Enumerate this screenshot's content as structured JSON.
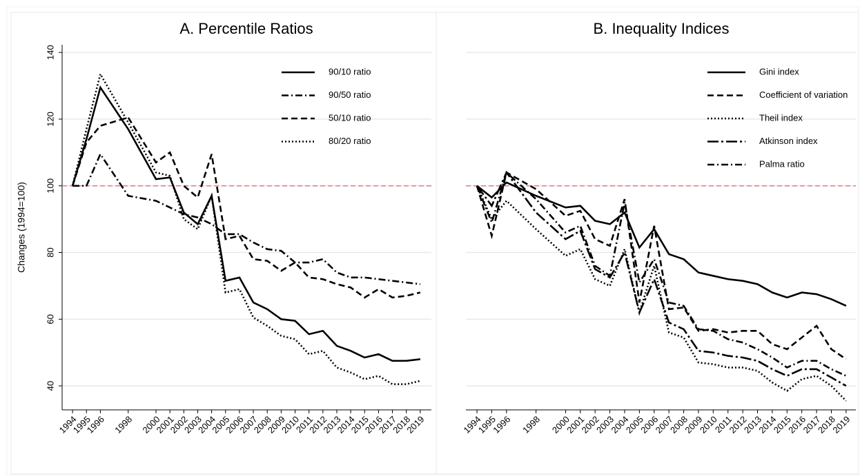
{
  "chart_data": [
    {
      "type": "line",
      "title": "A. Percentile Ratios",
      "y_label": "Changes (1994=100)",
      "x": [
        1994,
        1995,
        1996,
        1998,
        2000,
        2001,
        2002,
        2003,
        2004,
        2005,
        2006,
        2007,
        2008,
        2009,
        2010,
        2011,
        2012,
        2013,
        2014,
        2015,
        2016,
        2017,
        2018,
        2019
      ],
      "xlim": [
        1993.25,
        2019.8
      ],
      "xticks": [
        1994,
        1995,
        1996,
        1998,
        2000,
        2001,
        2002,
        2003,
        2004,
        2005,
        2006,
        2007,
        2008,
        2009,
        2010,
        2011,
        2012,
        2013,
        2014,
        2015,
        2016,
        2017,
        2018,
        2019
      ],
      "ylim": [
        32.8,
        142.3
      ],
      "yticks": [
        40,
        60,
        80,
        100,
        120,
        140
      ],
      "ytick_labels": true,
      "grid": true,
      "reference_line": 100,
      "reference_color": "#e07a7a",
      "legend": "top-right",
      "series": [
        {
          "name": "90/10 ratio",
          "color": "#000000",
          "dash": "solid",
          "values": [
            100,
            114,
            129.5,
            117,
            102,
            102.5,
            92,
            88.5,
            97,
            71.5,
            72.5,
            65,
            63,
            60,
            59.5,
            55.5,
            56.5,
            52,
            50.5,
            48.5,
            49.5,
            47.5,
            47.5,
            48
          ]
        },
        {
          "name": "90/50 ratio",
          "color": "#000000",
          "dash": "dash-dot",
          "values": [
            100,
            100,
            109.5,
            97,
            95.5,
            93.5,
            91.5,
            90.5,
            88.5,
            85.5,
            85.5,
            83,
            81,
            80.5,
            77,
            77,
            78,
            74,
            72.5,
            72.5,
            72,
            71.5,
            71,
            70.5
          ]
        },
        {
          "name": "50/10 ratio",
          "color": "#000000",
          "dash": "dash",
          "values": [
            100,
            113,
            118,
            120.5,
            107,
            110,
            100,
            96.5,
            109.5,
            84,
            85,
            78,
            77.5,
            74.5,
            77,
            72.5,
            72,
            70.5,
            69.5,
            66.5,
            69,
            66.5,
            67,
            68
          ]
        },
        {
          "name": "80/20 ratio",
          "color": "#000000",
          "dash": "dot",
          "values": [
            100,
            117,
            133.5,
            119,
            104,
            103,
            90,
            87,
            97,
            68,
            69,
            60.5,
            58,
            55,
            54,
            49.5,
            50.5,
            45.5,
            44,
            42,
            43,
            40.5,
            40.5,
            41.5
          ]
        }
      ]
    },
    {
      "type": "line",
      "title": "B. Inequality Indices",
      "x": [
        1994,
        1995,
        1996,
        1998,
        2000,
        2001,
        2002,
        2003,
        2004,
        2005,
        2006,
        2007,
        2008,
        2009,
        2010,
        2011,
        2012,
        2013,
        2014,
        2015,
        2016,
        2017,
        2018,
        2019
      ],
      "xlim": [
        1993.25,
        2019.66
      ],
      "xticks": [
        1994,
        1995,
        1996,
        1998,
        2000,
        2001,
        2002,
        2003,
        2004,
        2005,
        2006,
        2007,
        2008,
        2009,
        2010,
        2011,
        2012,
        2013,
        2014,
        2015,
        2016,
        2017,
        2018,
        2019
      ],
      "ylim": [
        32.8,
        142.3
      ],
      "yticks": [
        40,
        60,
        80,
        100,
        120,
        140
      ],
      "ytick_labels": false,
      "grid": true,
      "reference_line": 100,
      "reference_color": "#e07a7a",
      "legend": "top-right",
      "series": [
        {
          "name": "Gini index",
          "color": "#000000",
          "dash": "solid",
          "values": [
            100,
            96.5,
            101,
            97,
            93.5,
            94,
            89.5,
            88.5,
            92,
            81.5,
            87,
            79.5,
            78,
            74,
            73,
            72,
            71.5,
            70.5,
            68,
            66.5,
            68,
            67.5,
            66,
            64
          ]
        },
        {
          "name": "Coefficient of variation",
          "color": "#000000",
          "dash": "dash",
          "values": [
            100,
            85,
            104,
            99,
            91,
            92.5,
            84,
            82,
            96,
            65,
            88,
            63,
            63.5,
            56.5,
            57,
            56,
            56.5,
            56.5,
            52.5,
            51,
            54.5,
            58,
            51,
            48
          ]
        },
        {
          "name": "Theil index",
          "color": "#000000",
          "dash": "dot",
          "values": [
            100,
            90,
            95.5,
            87,
            79,
            81,
            72,
            70,
            81,
            62,
            76,
            56,
            54.5,
            47,
            46.5,
            45.5,
            45.5,
            44.5,
            41,
            38.5,
            42,
            43,
            40,
            35.5
          ]
        },
        {
          "name": "Atkinson index",
          "color": "#000000",
          "dash": "long-dash-dot",
          "values": [
            100,
            94,
            104,
            92,
            84,
            86.5,
            75,
            72.5,
            80,
            62,
            72,
            59,
            57,
            50.5,
            50,
            49,
            48.5,
            47.5,
            45,
            43,
            45,
            45,
            42.5,
            40
          ]
        },
        {
          "name": "Palma ratio",
          "color": "#000000",
          "dash": "dash-dot",
          "values": [
            100,
            89,
            104,
            96,
            86,
            88,
            76,
            73,
            95,
            71,
            78,
            65,
            64,
            57,
            56.5,
            54,
            53,
            51,
            48.5,
            45.5,
            47.5,
            47.5,
            45,
            43
          ]
        }
      ]
    }
  ]
}
